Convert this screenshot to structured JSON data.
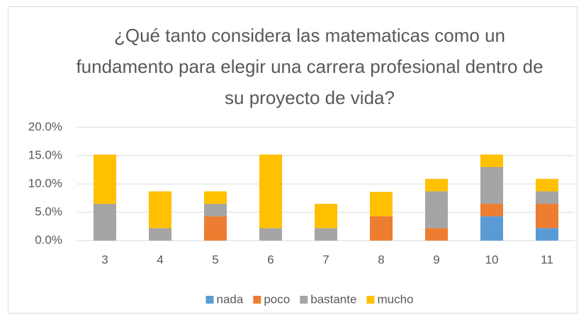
{
  "chart_data": {
    "type": "stacked_bar",
    "title": "¿Qué tanto considera las matematicas como un fundamento para elegir una carrera profesional dentro de su proyecto de vida?",
    "categories": [
      "3",
      "4",
      "5",
      "6",
      "7",
      "8",
      "9",
      "10",
      "11"
    ],
    "series": [
      {
        "name": "nada",
        "color": "#5b9bd5",
        "values": [
          0,
          0,
          0,
          0,
          0,
          0,
          0,
          4.3,
          2.2
        ]
      },
      {
        "name": "poco",
        "color": "#ed7d31",
        "values": [
          0,
          0,
          4.3,
          0,
          0,
          4.3,
          2.2,
          2.2,
          4.3
        ]
      },
      {
        "name": "bastante",
        "color": "#a5a5a5",
        "values": [
          6.5,
          2.2,
          2.2,
          2.2,
          2.2,
          0,
          6.5,
          6.5,
          2.2
        ]
      },
      {
        "name": "mucho",
        "color": "#ffc000",
        "values": [
          8.7,
          6.5,
          2.2,
          13.0,
          4.3,
          4.3,
          2.2,
          2.2,
          2.2
        ]
      }
    ],
    "ylim": [
      0,
      20
    ],
    "yticks": [
      {
        "value": 0,
        "label": "0.0%"
      },
      {
        "value": 5,
        "label": "5.0%"
      },
      {
        "value": 10,
        "label": "10.0%"
      },
      {
        "value": 15,
        "label": "15.0%"
      },
      {
        "value": 20,
        "label": "20.0%"
      }
    ],
    "grid": true,
    "legend": "bottom"
  }
}
